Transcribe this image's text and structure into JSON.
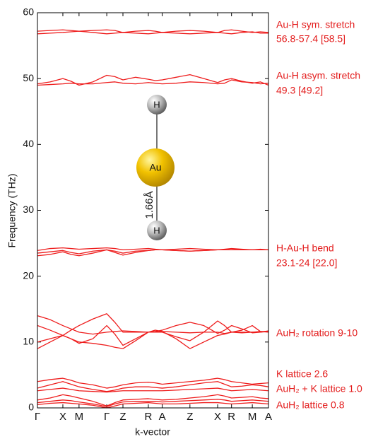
{
  "chart_data": {
    "type": "line",
    "ylabel": "Frequency (THz)",
    "xlabel": "k-vector",
    "color": "#ee1c1c",
    "xlim": [
      0,
      1
    ],
    "ylim": [
      0,
      60
    ],
    "yticks": [
      0,
      10,
      20,
      30,
      40,
      50,
      60
    ],
    "xticks": [
      {
        "value": 0,
        "label": "Γ"
      },
      {
        "value": 0.11,
        "label": "X"
      },
      {
        "value": 0.18,
        "label": "M"
      },
      {
        "value": 0.3,
        "label": "Γ"
      },
      {
        "value": 0.37,
        "label": "Z"
      },
      {
        "value": 0.48,
        "label": "R"
      },
      {
        "value": 0.54,
        "label": "A"
      },
      {
        "value": 0.66,
        "label": "Z"
      },
      {
        "value": 0.78,
        "label": "X"
      },
      {
        "value": 0.84,
        "label": "R"
      },
      {
        "value": 0.93,
        "label": "M"
      },
      {
        "value": 1.0,
        "label": "A"
      }
    ],
    "x": [
      0,
      0.055,
      0.11,
      0.145,
      0.18,
      0.24,
      0.3,
      0.335,
      0.37,
      0.425,
      0.48,
      0.51,
      0.54,
      0.6,
      0.66,
      0.72,
      0.78,
      0.81,
      0.84,
      0.885,
      0.93,
      0.965,
      1.0
    ],
    "series": [
      {
        "values": [
          57.2,
          57.3,
          57.4,
          57.3,
          57.2,
          57.3,
          57.4,
          57.3,
          57.0,
          57.2,
          57.3,
          57.2,
          57.0,
          57.2,
          57.3,
          57.2,
          57.0,
          57.3,
          57.4,
          57.2,
          57.0,
          57.1,
          57.0
        ]
      },
      {
        "values": [
          56.8,
          56.9,
          57.0,
          57.1,
          57.2,
          57.0,
          56.8,
          56.9,
          57.0,
          56.9,
          56.8,
          56.9,
          57.0,
          56.9,
          56.8,
          56.9,
          57.0,
          56.9,
          56.8,
          57.0,
          57.1,
          56.9,
          56.9
        ]
      },
      {
        "values": [
          49.2,
          49.5,
          50.0,
          49.6,
          49.0,
          49.5,
          50.5,
          50.3,
          49.8,
          50.2,
          49.9,
          49.7,
          49.8,
          50.2,
          50.6,
          50.0,
          49.4,
          49.8,
          50.0,
          49.6,
          49.3,
          49.5,
          49.0
        ]
      },
      {
        "values": [
          49.0,
          49.1,
          49.2,
          49.3,
          49.2,
          49.2,
          49.4,
          49.5,
          49.3,
          49.2,
          49.4,
          49.3,
          49.2,
          49.3,
          49.5,
          49.4,
          49.2,
          49.3,
          49.8,
          49.5,
          49.4,
          49.2,
          49.3
        ]
      },
      {
        "values": [
          23.9,
          24.2,
          24.3,
          24.2,
          24.1,
          24.2,
          24.3,
          24.2,
          24.0,
          24.1,
          24.2,
          24.1,
          24.0,
          24.1,
          24.2,
          24.1,
          24.0,
          24.1,
          24.2,
          24.1,
          24.0,
          24.1,
          24.0
        ]
      },
      {
        "values": [
          23.5,
          23.7,
          23.9,
          23.6,
          23.4,
          23.8,
          24.0,
          23.8,
          23.5,
          23.8,
          23.9,
          24.0,
          24.0,
          23.9,
          23.8,
          23.9,
          24.0,
          24.0,
          24.0,
          24.0,
          24.0,
          24.0,
          24.0
        ]
      },
      {
        "values": [
          23.1,
          23.3,
          23.7,
          23.3,
          23.1,
          23.5,
          24.0,
          23.6,
          23.2,
          23.6,
          23.9,
          24.0,
          24.0,
          23.9,
          23.8,
          23.9,
          24.0,
          24.0,
          24.0,
          24.0,
          24.0,
          24.0,
          24.0
        ]
      },
      {
        "values": [
          14.0,
          13.4,
          12.5,
          12.0,
          11.5,
          11.2,
          11.5,
          11.6,
          11.7,
          11.6,
          11.5,
          11.6,
          11.8,
          12.5,
          13.0,
          12.5,
          11.3,
          11.8,
          12.5,
          12.0,
          11.4,
          11.5,
          11.7
        ]
      },
      {
        "values": [
          12.5,
          11.8,
          11.0,
          11.8,
          12.5,
          13.5,
          14.3,
          13.0,
          11.5,
          11.5,
          11.5,
          11.5,
          11.6,
          11.5,
          11.4,
          11.5,
          11.5,
          11.3,
          11.5,
          11.4,
          11.5,
          11.6,
          11.6
        ]
      },
      {
        "values": [
          10.0,
          10.5,
          11.0,
          10.5,
          10.0,
          9.8,
          9.5,
          9.2,
          9.0,
          10.2,
          11.5,
          11.8,
          11.6,
          10.5,
          9.0,
          10.0,
          11.0,
          11.2,
          11.5,
          11.5,
          11.5,
          11.5,
          11.6
        ]
      },
      {
        "values": [
          9.0,
          10.0,
          11.0,
          10.5,
          9.8,
          10.5,
          12.5,
          11.2,
          9.5,
          10.5,
          11.5,
          11.5,
          11.5,
          10.8,
          10.2,
          11.5,
          13.2,
          12.5,
          11.5,
          11.8,
          12.5,
          11.6,
          11.5
        ]
      },
      {
        "values": [
          4.0,
          4.3,
          4.5,
          4.2,
          3.8,
          3.5,
          3.0,
          3.2,
          3.5,
          3.8,
          3.9,
          3.8,
          3.6,
          3.8,
          4.0,
          4.2,
          4.5,
          4.3,
          4.0,
          3.8,
          3.6,
          3.7,
          3.8
        ]
      },
      {
        "values": [
          3.0,
          3.5,
          4.0,
          3.6,
          3.2,
          2.8,
          2.5,
          2.7,
          3.0,
          3.2,
          3.2,
          3.1,
          3.0,
          3.2,
          3.5,
          3.8,
          4.0,
          3.6,
          3.2,
          3.3,
          3.5,
          3.4,
          3.2
        ]
      },
      {
        "values": [
          2.6,
          2.8,
          3.0,
          2.8,
          2.6,
          2.5,
          2.4,
          2.5,
          2.6,
          2.6,
          2.6,
          2.6,
          2.6,
          2.7,
          2.8,
          2.9,
          3.0,
          2.8,
          2.6,
          2.7,
          2.8,
          2.7,
          2.6
        ]
      },
      {
        "values": [
          1.2,
          1.5,
          2.0,
          1.8,
          1.5,
          1.0,
          0.3,
          0.8,
          1.2,
          1.3,
          1.4,
          1.3,
          1.2,
          1.3,
          1.5,
          1.7,
          2.0,
          1.8,
          1.5,
          1.6,
          1.7,
          1.5,
          1.4
        ]
      },
      {
        "values": [
          0.8,
          1.0,
          1.2,
          1.1,
          0.9,
          0.6,
          0.2,
          0.6,
          0.9,
          1.0,
          1.0,
          1.0,
          0.9,
          1.0,
          1.1,
          1.2,
          1.3,
          1.2,
          1.0,
          1.1,
          1.2,
          1.1,
          1.0
        ]
      },
      {
        "values": [
          0.5,
          0.7,
          0.8,
          0.7,
          0.6,
          0.4,
          0,
          0.3,
          0.6,
          0.7,
          0.8,
          0.7,
          0.6,
          0.6,
          0.7,
          0.8,
          0.8,
          0.7,
          0.6,
          0.7,
          0.8,
          0.7,
          0.6
        ]
      }
    ],
    "annotations": [
      "Au-H sym. stretch",
      "56.8-57.4 [58.5]",
      "Au-H asym. stretch",
      "49.3 [49.2]",
      "H-Au-H bend",
      "23.1-24 [22.0]",
      "AuH₂ rotation 9-10",
      "K lattice 2.6",
      "AuH₂ + K lattice 1.0",
      "AuH₂ lattice 0.8"
    ],
    "molecule": {
      "atoms": [
        "H",
        "Au",
        "H"
      ],
      "bond_length": "1.66Å"
    }
  }
}
